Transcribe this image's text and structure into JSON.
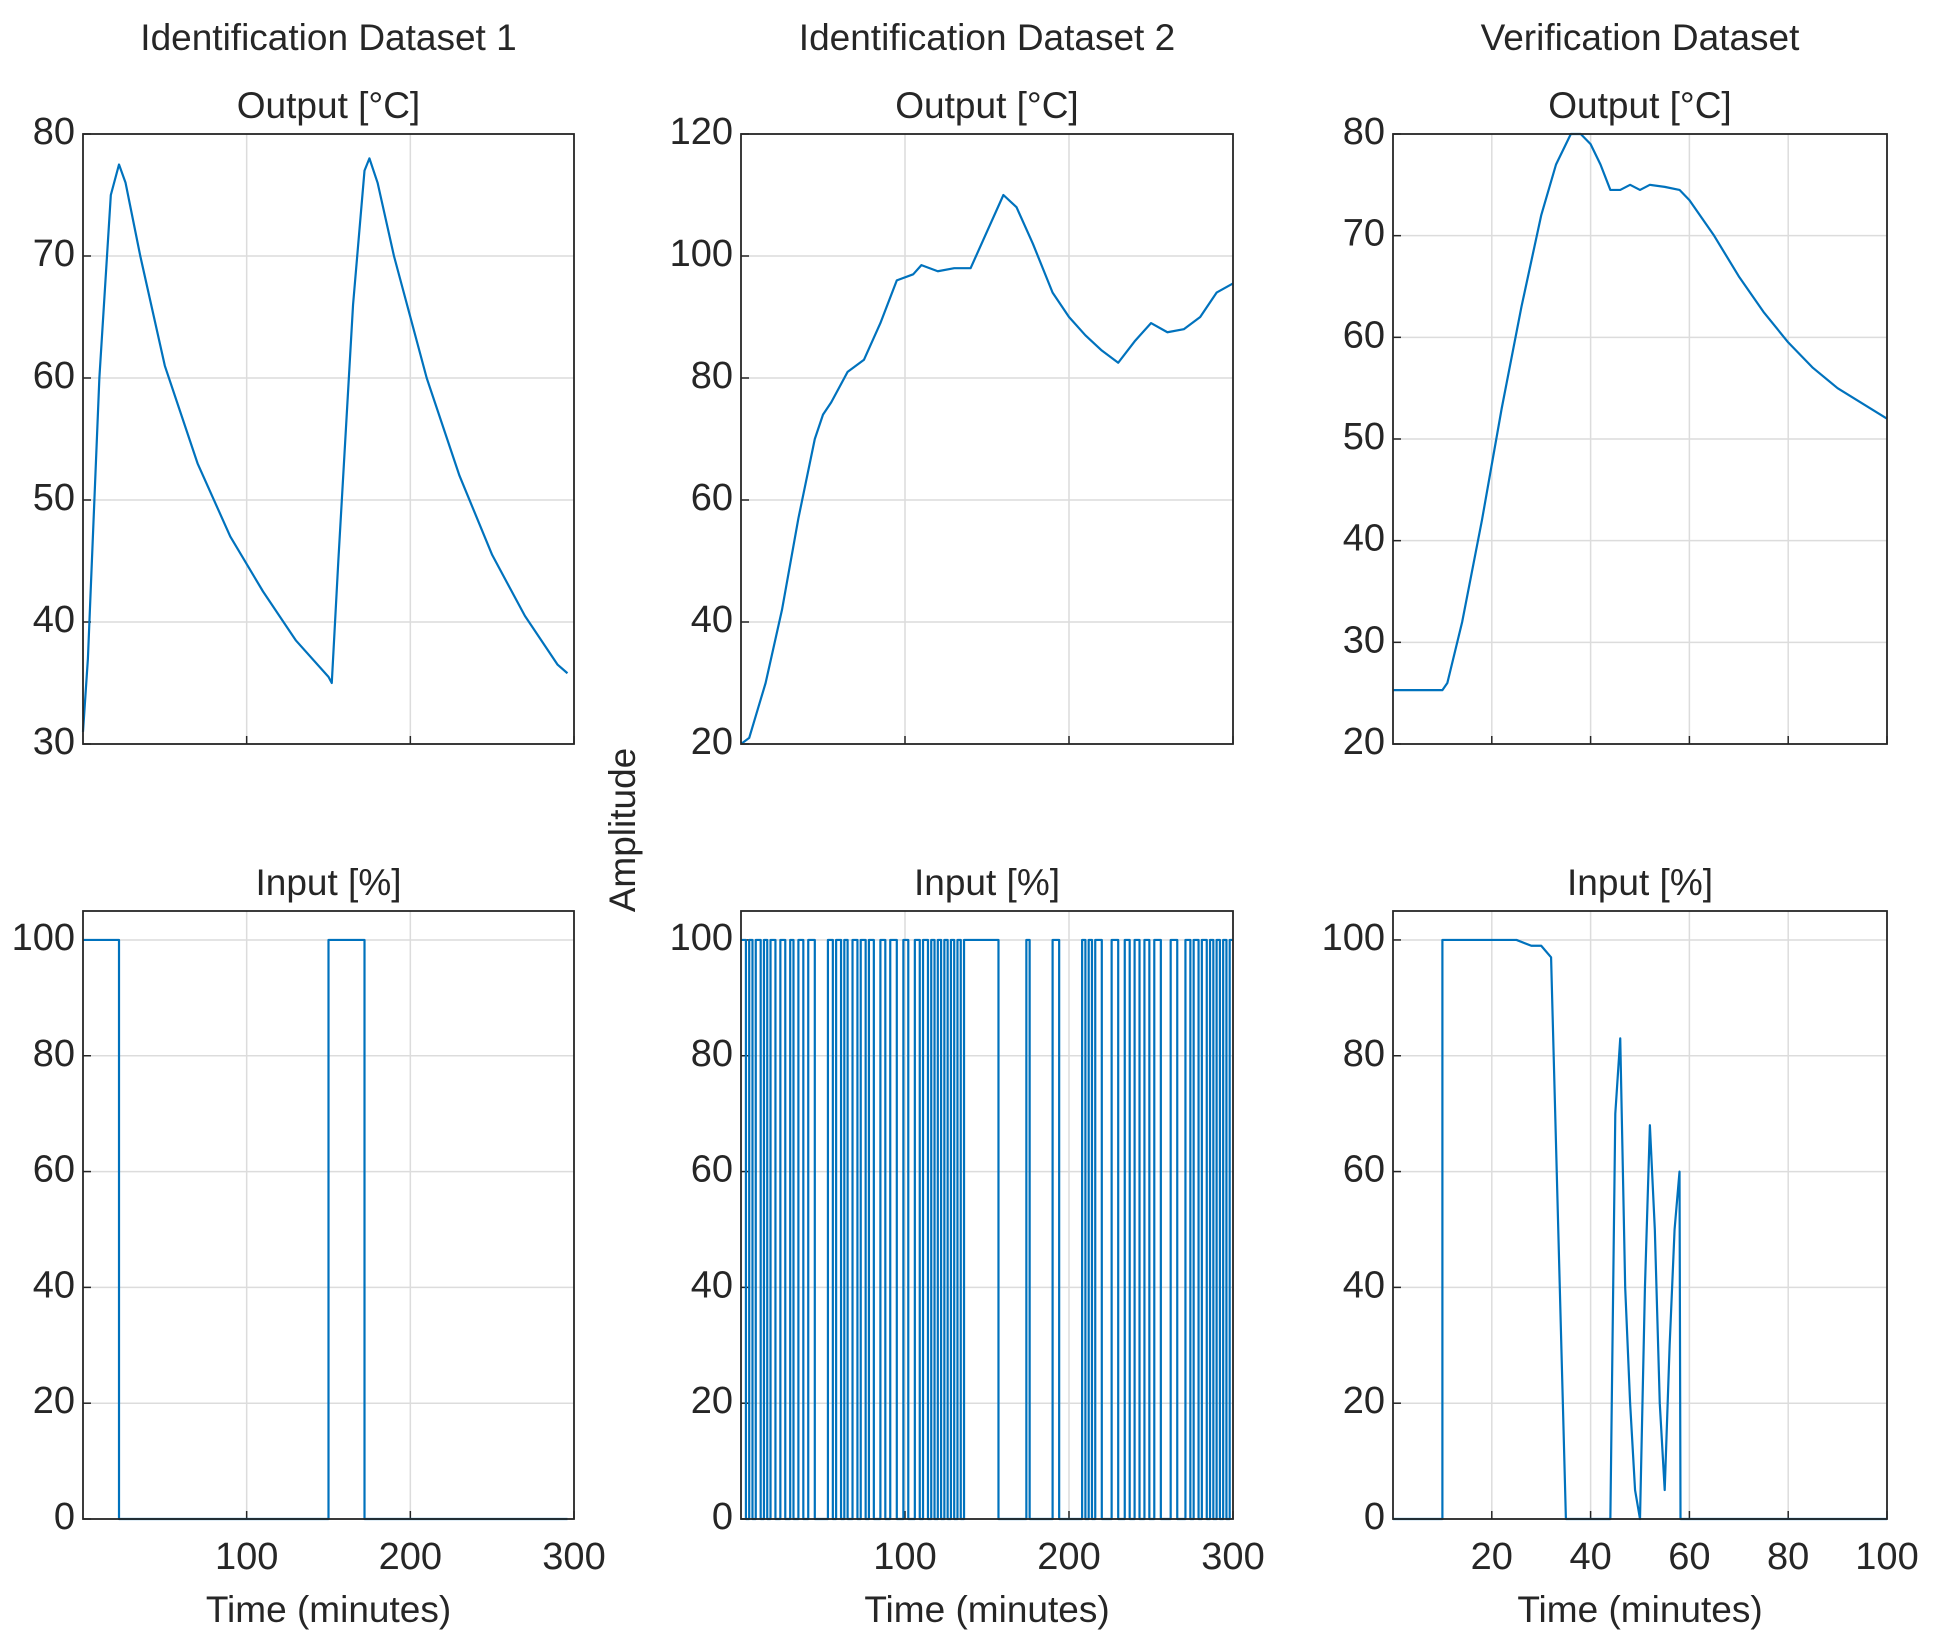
{
  "ylabel": "Amplitude",
  "chart_data": [
    {
      "type": "line",
      "title": "Identification Dataset 1",
      "subtitle": "Output [°C]",
      "xlim": [
        0,
        300
      ],
      "xticks": [
        100,
        200,
        300
      ],
      "show_xtick_labels": false,
      "ylim": [
        30,
        80
      ],
      "yticks": [
        30,
        40,
        50,
        60,
        70,
        80
      ],
      "grid": true,
      "step": false,
      "series": [
        {
          "color": "#0072bd",
          "x": [
            0,
            3,
            10,
            17,
            22,
            26,
            35,
            50,
            70,
            90,
            110,
            130,
            150,
            152,
            156,
            165,
            172,
            175,
            180,
            190,
            210,
            230,
            250,
            270,
            290,
            296
          ],
          "values": [
            31,
            37,
            60,
            75,
            77.5,
            76,
            70,
            61,
            53,
            47,
            42.5,
            38.5,
            35.5,
            35,
            45,
            66,
            77,
            78,
            76,
            70,
            60,
            52,
            45.5,
            40.5,
            36.5,
            35.8
          ]
        }
      ]
    },
    {
      "type": "line",
      "title": "Identification Dataset 2",
      "subtitle": "Output [°C]",
      "xlim": [
        0,
        300
      ],
      "xticks": [
        100,
        200,
        300
      ],
      "show_xtick_labels": false,
      "ylim": [
        20,
        120
      ],
      "yticks": [
        20,
        40,
        60,
        80,
        100,
        120
      ],
      "grid": true,
      "step": false,
      "series": [
        {
          "color": "#0072bd",
          "x": [
            0,
            5,
            15,
            25,
            35,
            45,
            50,
            55,
            65,
            75,
            85,
            95,
            105,
            110,
            120,
            130,
            140,
            150,
            160,
            168,
            178,
            190,
            200,
            210,
            220,
            230,
            240,
            250,
            260,
            270,
            280,
            290,
            300
          ],
          "values": [
            20,
            21,
            30,
            42,
            57,
            70,
            74,
            76,
            81,
            83,
            89,
            96,
            97,
            98.5,
            97.5,
            98,
            98,
            104,
            110,
            108,
            102,
            94,
            90,
            87,
            84.5,
            82.5,
            86,
            89,
            87.5,
            88,
            90,
            94,
            95.5
          ]
        }
      ]
    },
    {
      "type": "line",
      "title": "Verification Dataset",
      "subtitle": "Output [°C]",
      "xlim": [
        0,
        100
      ],
      "xticks": [
        20,
        40,
        60,
        80,
        100
      ],
      "show_xtick_labels": false,
      "ylim": [
        20,
        80
      ],
      "yticks": [
        20,
        30,
        40,
        50,
        60,
        70,
        80
      ],
      "grid": true,
      "step": false,
      "series": [
        {
          "color": "#0072bd",
          "x": [
            0,
            10,
            11,
            14,
            18,
            22,
            26,
            30,
            33,
            36,
            38,
            40,
            42,
            44,
            46,
            48,
            50,
            52,
            55,
            58,
            60,
            65,
            70,
            75,
            80,
            85,
            90,
            95,
            100
          ],
          "values": [
            25.3,
            25.3,
            26,
            32,
            42,
            53,
            63,
            72,
            77,
            80,
            80,
            79,
            77,
            74.5,
            74.5,
            75,
            74.5,
            75,
            74.8,
            74.5,
            73.5,
            70,
            66,
            62.5,
            59.5,
            57,
            55,
            53.5,
            52
          ]
        }
      ]
    },
    {
      "type": "line",
      "title": "Input [%]",
      "xlabel": "Time (minutes)",
      "xlim": [
        0,
        300
      ],
      "xticks": [
        100,
        200,
        300
      ],
      "show_xtick_labels": true,
      "ylim": [
        0,
        105
      ],
      "yticks": [
        0,
        20,
        40,
        60,
        80,
        100
      ],
      "grid": true,
      "step": true,
      "series": [
        {
          "color": "#0072bd",
          "x": [
            0,
            22,
            150,
            172,
            296
          ],
          "values": [
            100,
            0,
            100,
            0,
            0
          ]
        }
      ]
    },
    {
      "type": "line",
      "title": "Input [%]",
      "xlabel": "Time (minutes)",
      "xlim": [
        0,
        300
      ],
      "xticks": [
        100,
        200,
        300
      ],
      "show_xtick_labels": true,
      "ylim": [
        0,
        105
      ],
      "yticks": [
        0,
        20,
        40,
        60,
        80,
        100
      ],
      "grid": true,
      "step": true,
      "series": [
        {
          "color": "#0072bd",
          "x": [
            0,
            3,
            5,
            7,
            9,
            12,
            14,
            16,
            18,
            21,
            24,
            27,
            30,
            32,
            35,
            38,
            41,
            45,
            53,
            56,
            58,
            61,
            63,
            65,
            68,
            71,
            73,
            76,
            78,
            81,
            85,
            88,
            91,
            95,
            99,
            102,
            106,
            109,
            111,
            114,
            116,
            118,
            120,
            122,
            124,
            126,
            128,
            130,
            132,
            134,
            136,
            157,
            174,
            176,
            190,
            194,
            208,
            210,
            212,
            214,
            216,
            220,
            226,
            230,
            234,
            237,
            240,
            243,
            246,
            249,
            252,
            256,
            262,
            266,
            271,
            274,
            276,
            279,
            281,
            284,
            286,
            288,
            290,
            292,
            294,
            296,
            298,
            300
          ],
          "values": [
            100,
            0,
            100,
            0,
            100,
            0,
            100,
            0,
            100,
            0,
            100,
            0,
            100,
            0,
            100,
            0,
            100,
            0,
            100,
            0,
            100,
            0,
            100,
            0,
            100,
            0,
            100,
            0,
            100,
            0,
            100,
            0,
            100,
            0,
            100,
            0,
            100,
            0,
            100,
            0,
            100,
            0,
            100,
            0,
            100,
            0,
            100,
            0,
            100,
            0,
            100,
            0,
            100,
            0,
            100,
            0,
            100,
            0,
            100,
            0,
            100,
            0,
            100,
            0,
            100,
            0,
            100,
            0,
            100,
            0,
            100,
            0,
            100,
            0,
            100,
            0,
            100,
            0,
            100,
            0,
            100,
            0,
            100,
            0,
            100,
            0,
            100,
            100
          ]
        }
      ]
    },
    {
      "type": "line",
      "title": "Input [%]",
      "xlabel": "Time (minutes)",
      "xlim": [
        0,
        100
      ],
      "xticks": [
        20,
        40,
        60,
        80,
        100
      ],
      "show_xtick_labels": true,
      "ylim": [
        0,
        105
      ],
      "yticks": [
        0,
        20,
        40,
        60,
        80,
        100
      ],
      "grid": true,
      "step": false,
      "series": [
        {
          "color": "#0072bd",
          "x": [
            0,
            10,
            10,
            25,
            28,
            30,
            32,
            35,
            44,
            45,
            46,
            47,
            48,
            49,
            50,
            51,
            52,
            53,
            54,
            55,
            56,
            57,
            58,
            58.2,
            100
          ],
          "values": [
            0,
            0,
            100,
            100,
            99,
            99,
            97,
            0,
            0,
            70,
            83,
            40,
            20,
            5,
            0,
            40,
            68,
            50,
            20,
            5,
            30,
            50,
            60,
            0,
            0
          ]
        }
      ]
    }
  ]
}
